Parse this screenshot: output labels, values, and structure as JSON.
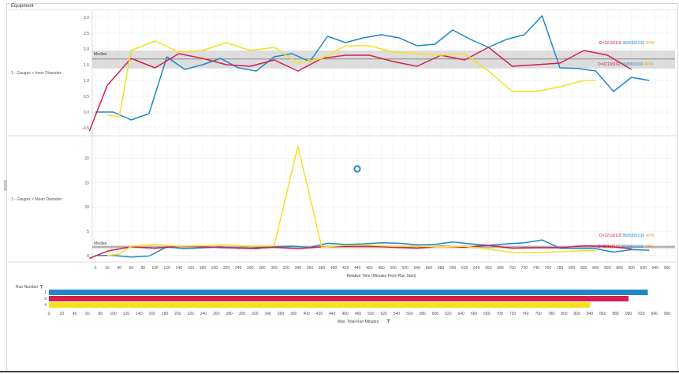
{
  "panel": {
    "title": "Equipment"
  },
  "chart_data": [
    {
      "type": "line",
      "panel_label": "1 - Gauges > Inner Diameter",
      "ylim": [
        -0.7,
        3.2
      ],
      "y_ticks": [
        -0.5,
        0.0,
        0.5,
        1.0,
        1.5,
        2.0,
        2.5,
        3.0
      ],
      "y_tick_labels": [
        "-0.5",
        "0.0",
        "0.5",
        "1.0",
        "1.5",
        "2.0",
        "2.5",
        "3.0"
      ],
      "median": {
        "label": "Median",
        "value": 1.68,
        "band": [
          1.38,
          1.95
        ]
      },
      "annotations": [
        {
          "text": "D=22118102",
          "color": "#d6204b",
          "y": 2.2
        },
        {
          "text": "9605991010",
          "color": "#1e88c8",
          "y": 2.2
        },
        {
          "text": "APM",
          "color": "#f0a030",
          "y": 2.2
        },
        {
          "text": "D=22118102",
          "color": "#d6204b",
          "y": 1.52
        },
        {
          "text": "9605991010",
          "color": "#1e88c8",
          "y": 1.52
        },
        {
          "text": "APM",
          "color": "#f0a030",
          "y": 1.52
        }
      ],
      "series": [
        {
          "color": "#1e88c8",
          "x": [
            0,
            30,
            60,
            90,
            120,
            150,
            180,
            210,
            240,
            270,
            300,
            330,
            360,
            390,
            420,
            450,
            480,
            510,
            540,
            570,
            600,
            630,
            660,
            690,
            720,
            750,
            780,
            810,
            840,
            870,
            900,
            930
          ],
          "y": [
            0.0,
            0.0,
            -0.25,
            -0.05,
            1.75,
            1.35,
            1.5,
            1.7,
            1.4,
            1.3,
            1.75,
            1.85,
            1.6,
            2.4,
            2.2,
            2.35,
            2.45,
            2.35,
            2.1,
            2.15,
            2.6,
            2.3,
            2.05,
            2.3,
            2.45,
            3.05,
            1.4,
            1.38,
            1.3,
            0.65,
            1.1,
            1.0
          ]
        },
        {
          "color": "#d6204b",
          "x": [
            -10,
            20,
            60,
            100,
            140,
            180,
            220,
            260,
            300,
            340,
            380,
            420,
            460,
            500,
            540,
            580,
            620,
            660,
            700,
            740,
            780,
            820,
            860,
            900
          ],
          "y": [
            -0.6,
            0.85,
            1.7,
            1.4,
            1.85,
            1.7,
            1.5,
            1.45,
            1.65,
            1.3,
            1.7,
            1.8,
            1.8,
            1.6,
            1.45,
            1.8,
            1.65,
            2.05,
            1.45,
            1.5,
            1.55,
            1.95,
            1.8,
            1.35
          ]
        },
        {
          "color": "#f5e020",
          "x": [
            20,
            40,
            60,
            100,
            140,
            180,
            220,
            260,
            300,
            340,
            380,
            420,
            460,
            500,
            540,
            580,
            620,
            660,
            700,
            740,
            780,
            820,
            840
          ],
          "y": [
            -0.1,
            -0.15,
            1.95,
            2.25,
            1.9,
            1.95,
            2.2,
            1.95,
            2.05,
            1.55,
            1.7,
            2.1,
            2.1,
            1.9,
            1.85,
            1.8,
            1.85,
            1.3,
            0.65,
            0.65,
            0.8,
            1.0,
            1.0
          ]
        }
      ]
    },
    {
      "type": "line",
      "panel_label": "1 - Gauges > Mean Diameter",
      "ylim": [
        -1,
        24
      ],
      "y_ticks": [
        0,
        5,
        10,
        15,
        20
      ],
      "y_tick_labels": [
        "0",
        "5",
        "10",
        "15",
        "20"
      ],
      "median": {
        "label": "Median",
        "value": 1.75,
        "band": [
          1.4,
          2.1
        ]
      },
      "annotations": [
        {
          "text": "D=22118102",
          "color": "#d6204b",
          "y": 4.2
        },
        {
          "text": "9605991010",
          "color": "#1e88c8",
          "y": 4.2
        },
        {
          "text": "APM",
          "color": "#f0a030",
          "y": 4.2
        },
        {
          "text": "D=22118102",
          "color": "#d6204b",
          "y": 1.9
        },
        {
          "text": "9605991010",
          "color": "#1e88c8",
          "y": 1.9
        },
        {
          "text": "APM",
          "color": "#f0a030",
          "y": 1.9
        }
      ],
      "x_ticks": [
        0,
        20,
        40,
        60,
        80,
        100,
        120,
        140,
        160,
        180,
        200,
        220,
        240,
        260,
        280,
        300,
        320,
        340,
        360,
        380,
        400,
        420,
        440,
        460,
        480,
        500,
        520,
        540,
        560,
        580,
        600,
        620,
        640,
        660,
        680,
        700,
        720,
        740,
        760,
        780,
        800,
        820,
        840,
        860,
        880,
        900,
        920,
        940,
        960
      ],
      "xlim": [
        0,
        960
      ],
      "xlabel": "Relative Time (Minutes From Run Start)",
      "series": [
        {
          "color": "#1e88c8",
          "x": [
            0,
            30,
            60,
            90,
            120,
            150,
            180,
            210,
            240,
            270,
            300,
            330,
            360,
            390,
            420,
            450,
            480,
            510,
            540,
            570,
            600,
            630,
            660,
            690,
            720,
            750,
            780,
            810,
            840,
            870,
            900,
            930
          ],
          "y": [
            0.0,
            0.0,
            -0.3,
            -0.1,
            1.8,
            1.4,
            1.6,
            1.8,
            1.5,
            1.4,
            1.8,
            1.9,
            1.7,
            2.5,
            2.3,
            2.4,
            2.6,
            2.5,
            2.2,
            2.3,
            2.8,
            2.4,
            2.1,
            2.4,
            2.6,
            3.2,
            1.5,
            1.45,
            1.4,
            0.7,
            1.2,
            1.1
          ]
        },
        {
          "color": "#d6204b",
          "x": [
            -10,
            20,
            60,
            100,
            140,
            180,
            220,
            260,
            300,
            340,
            380,
            420,
            460,
            500,
            540,
            580,
            620,
            660,
            700,
            740,
            780,
            820,
            860,
            900
          ],
          "y": [
            -0.6,
            0.9,
            1.8,
            1.5,
            1.9,
            1.8,
            1.6,
            1.5,
            1.7,
            1.4,
            1.8,
            1.9,
            1.9,
            1.7,
            1.5,
            1.9,
            1.7,
            2.1,
            1.5,
            1.6,
            1.6,
            2.0,
            1.9,
            1.4
          ]
        },
        {
          "color": "#f5e020",
          "x": [
            20,
            40,
            60,
            100,
            140,
            180,
            220,
            260,
            300,
            340,
            380,
            420,
            460,
            500,
            540,
            580,
            620,
            660,
            700,
            740,
            780,
            820,
            840
          ],
          "y": [
            0.0,
            0.3,
            1.9,
            2.3,
            1.9,
            2.0,
            2.2,
            1.9,
            2.0,
            22.5,
            1.7,
            2.1,
            2.1,
            1.9,
            1.9,
            1.8,
            1.9,
            1.3,
            0.6,
            0.6,
            0.8,
            1.0,
            1.0
          ]
        }
      ]
    },
    {
      "type": "bar",
      "orientation": "horizontal",
      "title": "Run Number",
      "categories": [
        "1",
        "3",
        "4"
      ],
      "values": [
        930,
        900,
        840
      ],
      "colors": [
        "#1e88c8",
        "#d6204b",
        "#f5e020"
      ],
      "xlim": [
        0,
        960
      ],
      "x_ticks": [
        0,
        20,
        40,
        60,
        80,
        100,
        120,
        140,
        160,
        180,
        200,
        220,
        240,
        260,
        280,
        300,
        320,
        340,
        360,
        380,
        400,
        420,
        440,
        460,
        480,
        500,
        520,
        540,
        560,
        580,
        600,
        620,
        640,
        660,
        680,
        700,
        720,
        740,
        760,
        780,
        800,
        820,
        840,
        860,
        880,
        900,
        920,
        940,
        960
      ],
      "xlabel": "Max. Total Run Minutes"
    }
  ]
}
